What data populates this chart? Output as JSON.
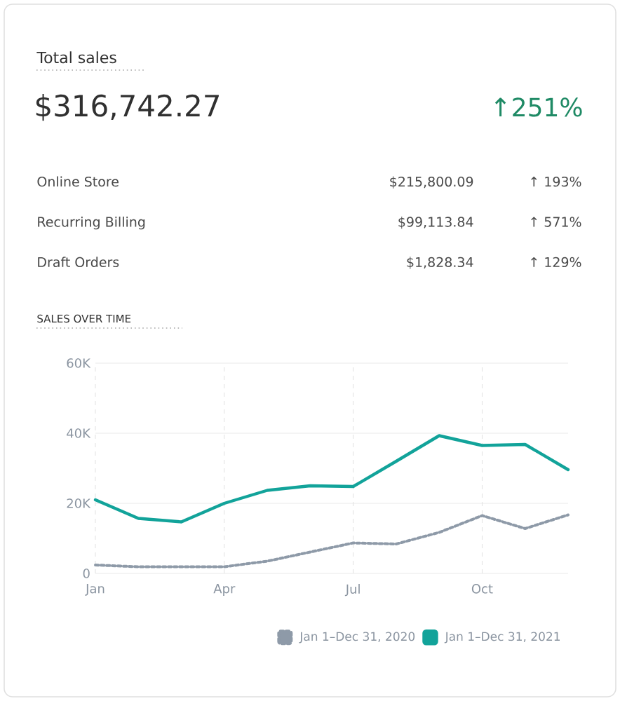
{
  "chart_data": {
    "type": "line",
    "title": "Total sales",
    "subtitle": "$316,742.27",
    "annotations": [
      "↑251%",
      "Online Store",
      "$215,800.09",
      "↑ 193%",
      "Recurring Billing",
      "$99,113.84",
      "↑ 571%",
      "Draft Orders",
      "$1,828.34",
      "↑ 129%",
      "SALES OVER TIME"
    ],
    "categories": [
      "Jan",
      null,
      null,
      "Apr",
      null,
      null,
      "Jul",
      null,
      null,
      "Oct",
      null,
      null
    ],
    "series": [
      {
        "name": "Jan 1–Dec 31, 2020",
        "color": "#8e9aa8",
        "line_style": "dotted",
        "values": [
          2400,
          1900,
          1900,
          1900,
          3500,
          6100,
          8700,
          8400,
          11700,
          16500,
          12800,
          16700
        ]
      },
      {
        "name": "Jan 1–Dec 31, 2021",
        "color": "#12a39a",
        "line_style": "solid",
        "values": [
          21000,
          15700,
          14700,
          20000,
          23700,
          25000,
          24800,
          32000,
          39300,
          36500,
          36800,
          29600
        ]
      }
    ],
    "ylim": [
      0,
      60000
    ],
    "yticks": [
      {
        "value": 0,
        "label": "0"
      },
      {
        "value": 20000,
        "label": "20K"
      },
      {
        "value": 40000,
        "label": "40K"
      },
      {
        "value": 60000,
        "label": "60K"
      }
    ],
    "grid": true,
    "legend": "bottom right",
    "marker": "none"
  }
}
